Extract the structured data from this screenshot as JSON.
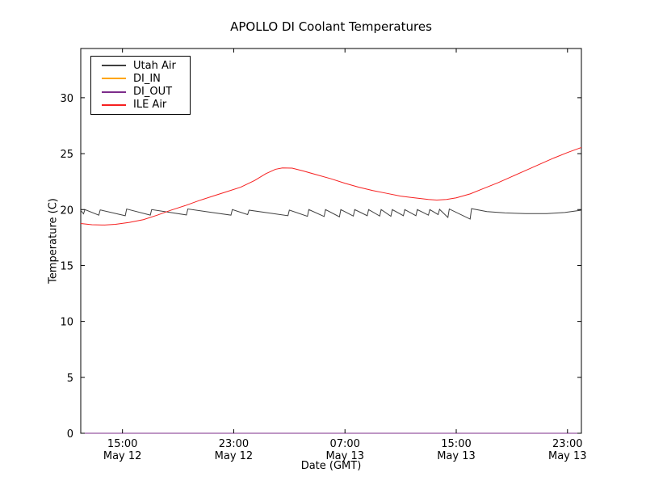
{
  "figure": {
    "title": "APOLLO DI Coolant Temperatures",
    "background": "#ffffff"
  },
  "chart_data": {
    "type": "line",
    "title": "APOLLO DI Coolant Temperatures",
    "xlabel": "Date (GMT)",
    "ylabel": "Temperature (C)",
    "grid": false,
    "legend_position": "upper left",
    "x_axis": {
      "unit": "hours since May 12 12:00 GMT",
      "range": [
        0,
        36
      ]
    },
    "y_axis": {
      "range": [
        0,
        34.4
      ]
    },
    "yticks": [
      {
        "v": 0,
        "label": "0"
      },
      {
        "v": 5,
        "label": "5"
      },
      {
        "v": 10,
        "label": "10"
      },
      {
        "v": 15,
        "label": "15"
      },
      {
        "v": 20,
        "label": "20"
      },
      {
        "v": 25,
        "label": "25"
      },
      {
        "v": 30,
        "label": "30"
      }
    ],
    "xticks": [
      {
        "h": 3,
        "time": "15:00",
        "date": "May 12"
      },
      {
        "h": 11,
        "time": "23:00",
        "date": "May 12"
      },
      {
        "h": 19,
        "time": "07:00",
        "date": "May 13"
      },
      {
        "h": 27,
        "time": "15:00",
        "date": "May 13"
      },
      {
        "h": 35,
        "time": "23:00",
        "date": "May 13"
      }
    ],
    "series": [
      {
        "name": "Utah Air",
        "color": "#3f3f3f",
        "points": [
          [
            0,
            19.92
          ],
          [
            0.2,
            19.62
          ],
          [
            0.3,
            20.0
          ],
          [
            1.3,
            19.5
          ],
          [
            1.4,
            19.97
          ],
          [
            3.2,
            19.45
          ],
          [
            3.3,
            20.05
          ],
          [
            5.0,
            19.5
          ],
          [
            5.1,
            20.0
          ],
          [
            7.6,
            19.52
          ],
          [
            7.7,
            20.05
          ],
          [
            10.8,
            19.5
          ],
          [
            10.9,
            20.0
          ],
          [
            12.0,
            19.55
          ],
          [
            12.1,
            19.95
          ],
          [
            14.9,
            19.45
          ],
          [
            15.0,
            19.95
          ],
          [
            16.3,
            19.4
          ],
          [
            16.4,
            20.0
          ],
          [
            17.5,
            19.38
          ],
          [
            17.6,
            20.0
          ],
          [
            18.6,
            19.35
          ],
          [
            18.7,
            20.0
          ],
          [
            19.6,
            19.42
          ],
          [
            19.7,
            20.0
          ],
          [
            20.6,
            19.45
          ],
          [
            20.7,
            20.0
          ],
          [
            21.5,
            19.42
          ],
          [
            21.6,
            20.0
          ],
          [
            22.3,
            19.4
          ],
          [
            22.4,
            20.0
          ],
          [
            23.2,
            19.45
          ],
          [
            23.3,
            20.0
          ],
          [
            24.1,
            19.45
          ],
          [
            24.2,
            20.0
          ],
          [
            25.0,
            19.5
          ],
          [
            25.1,
            20.0
          ],
          [
            25.7,
            19.55
          ],
          [
            25.8,
            20.02
          ],
          [
            26.4,
            19.3
          ],
          [
            26.5,
            20.05
          ],
          [
            28.0,
            19.15
          ],
          [
            28.1,
            20.08
          ],
          [
            29.2,
            19.82
          ],
          [
            30.5,
            19.7
          ],
          [
            32,
            19.64
          ],
          [
            33.5,
            19.64
          ],
          [
            34.8,
            19.74
          ],
          [
            36,
            19.95
          ]
        ]
      },
      {
        "name": "DI_IN",
        "color": "#ffa500",
        "points": [
          [
            0,
            0
          ],
          [
            36,
            0
          ]
        ]
      },
      {
        "name": "DI_OUT",
        "color": "#7d2d8b",
        "points": [
          [
            0,
            0
          ],
          [
            36,
            0
          ]
        ]
      },
      {
        "name": "ILE Air",
        "color": "#f62020",
        "points": [
          [
            0,
            18.75
          ],
          [
            0.8,
            18.65
          ],
          [
            1.7,
            18.62
          ],
          [
            2.5,
            18.68
          ],
          [
            3.5,
            18.85
          ],
          [
            4.5,
            19.1
          ],
          [
            5.5,
            19.5
          ],
          [
            6.5,
            19.95
          ],
          [
            7.5,
            20.35
          ],
          [
            8.5,
            20.8
          ],
          [
            9.5,
            21.2
          ],
          [
            10.5,
            21.6
          ],
          [
            11.5,
            22.0
          ],
          [
            12.5,
            22.6
          ],
          [
            13.3,
            23.2
          ],
          [
            14.0,
            23.6
          ],
          [
            14.5,
            23.72
          ],
          [
            15.2,
            23.7
          ],
          [
            16,
            23.45
          ],
          [
            17,
            23.1
          ],
          [
            18,
            22.75
          ],
          [
            19,
            22.35
          ],
          [
            20,
            22.0
          ],
          [
            21,
            21.7
          ],
          [
            22,
            21.45
          ],
          [
            23,
            21.2
          ],
          [
            24,
            21.05
          ],
          [
            25,
            20.9
          ],
          [
            25.6,
            20.85
          ],
          [
            26.3,
            20.9
          ],
          [
            27,
            21.05
          ],
          [
            28,
            21.4
          ],
          [
            29,
            21.9
          ],
          [
            30,
            22.4
          ],
          [
            31,
            22.95
          ],
          [
            32,
            23.5
          ],
          [
            33,
            24.05
          ],
          [
            34,
            24.6
          ],
          [
            35,
            25.1
          ],
          [
            36,
            25.55
          ]
        ]
      }
    ]
  },
  "legend": {
    "entries": [
      {
        "label": "Utah Air"
      },
      {
        "label": "DI_IN"
      },
      {
        "label": "DI_OUT"
      },
      {
        "label": "ILE Air"
      }
    ]
  }
}
